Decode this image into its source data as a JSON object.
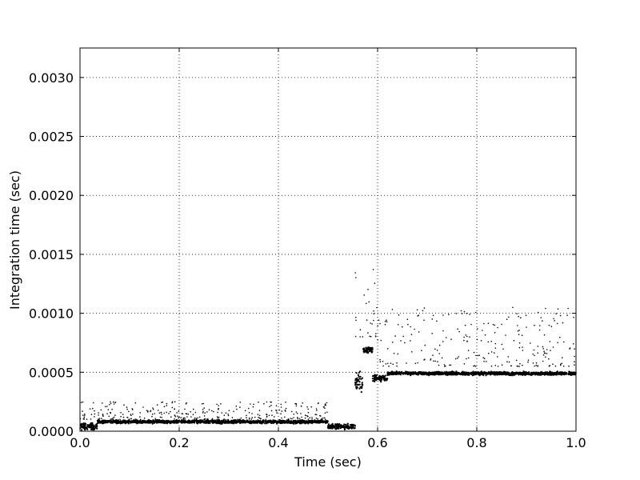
{
  "chart_data": {
    "type": "scatter",
    "title": "",
    "xlabel": "Time (sec)",
    "ylabel": "Integration time (sec)",
    "xlim": [
      0.0,
      1.0
    ],
    "ylim": [
      0.0,
      0.00325
    ],
    "xticks": [
      0.0,
      0.2,
      0.4,
      0.6,
      0.8,
      1.0
    ],
    "xtick_labels": [
      "0.0",
      "0.2",
      "0.4",
      "0.6",
      "0.8",
      "1.0"
    ],
    "yticks": [
      0.0,
      0.0005,
      0.001,
      0.0015,
      0.002,
      0.0025,
      0.003
    ],
    "ytick_labels": [
      "0.0000",
      "0.0005",
      "0.0010",
      "0.0015",
      "0.0020",
      "0.0025",
      "0.0030"
    ],
    "grid": true,
    "marker_color": "#000000",
    "segments": [
      {
        "x_start": 0.0,
        "x_end": 0.035,
        "level": 4e-05,
        "spread": 4e-05
      },
      {
        "x_start": 0.035,
        "x_end": 0.5,
        "level": 8e-05,
        "spread": 2e-05
      },
      {
        "x_start": 0.5,
        "x_end": 0.555,
        "level": 4e-05,
        "spread": 3e-05
      },
      {
        "x_start": 0.555,
        "x_end": 0.57,
        "level": 0.00042,
        "spread": 0.00012
      },
      {
        "x_start": 0.57,
        "x_end": 0.59,
        "level": 0.00069,
        "spread": 4e-05
      },
      {
        "x_start": 0.59,
        "x_end": 0.62,
        "level": 0.00045,
        "spread": 4e-05
      },
      {
        "x_start": 0.62,
        "x_end": 1.0,
        "level": 0.00049,
        "spread": 2e-05
      }
    ],
    "sparse_outliers": [
      {
        "x_start": 0.0,
        "x_end": 0.5,
        "y_min": 0.0001,
        "y_max": 0.00025
      },
      {
        "x_start": 0.555,
        "x_end": 0.6,
        "y_min": 0.0008,
        "y_max": 0.00145
      },
      {
        "x_start": 0.6,
        "x_end": 1.0,
        "y_min": 0.00055,
        "y_max": 0.00105
      }
    ]
  }
}
